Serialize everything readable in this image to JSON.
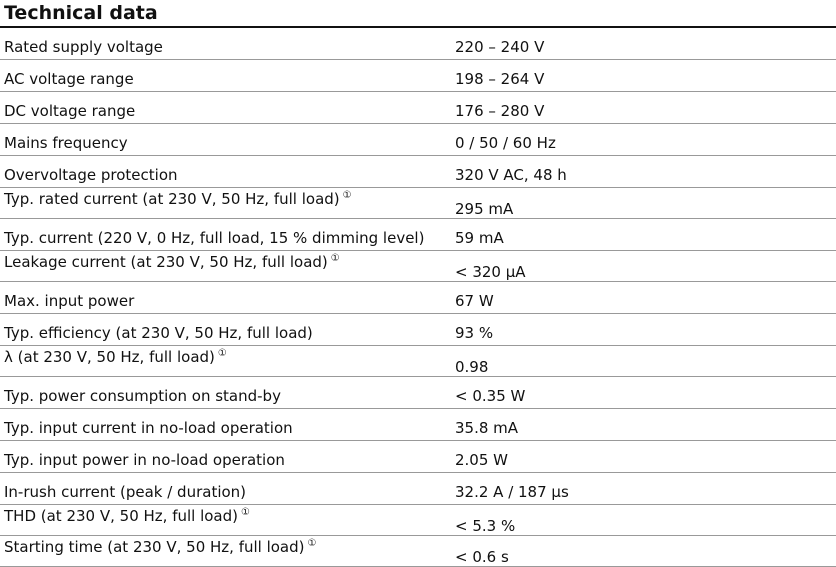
{
  "title": "Technical data",
  "table": {
    "rows": [
      {
        "label": "Rated supply voltage",
        "value": "220 – 240 V"
      },
      {
        "label": "AC voltage range",
        "value": "198 – 264 V"
      },
      {
        "label": "DC voltage range",
        "value": "176 – 280 V"
      },
      {
        "label": "Mains frequency",
        "value": "0 / 50 / 60 Hz"
      },
      {
        "label": "Overvoltage protection",
        "value": "320 V AC, 48 h"
      },
      {
        "label": "Typ. rated current (at 230 V, 50 Hz, full load)",
        "note": "①",
        "value": "295 mA"
      },
      {
        "label": "Typ. current (220 V, 0 Hz, full load, 15 % dimming level)",
        "value": "59 mA"
      },
      {
        "label": "Leakage current (at 230 V, 50 Hz, full load)",
        "note": "①",
        "value": "< 320 µA"
      },
      {
        "label": "Max. input power",
        "value": "67 W"
      },
      {
        "label": "Typ. efficiency (at 230 V, 50 Hz, full load)",
        "value": "93 %"
      },
      {
        "label": "λ (at 230 V, 50 Hz, full load)",
        "note": "①",
        "value": "0.98"
      },
      {
        "label": "Typ. power consumption on stand-by",
        "value": "< 0.35 W"
      },
      {
        "label": "Typ. input current in no-load operation",
        "value": "35.8 mA"
      },
      {
        "label": "Typ. input power in no-load operation",
        "value": "2.05 W"
      },
      {
        "label": "In-rush current (peak / duration)",
        "value": "32.2 A / 187 µs"
      },
      {
        "label": "THD (at 230 V, 50 Hz, full load)",
        "note": "①",
        "value": "< 5.3 %"
      },
      {
        "label": "Starting time (at 230 V, 50 Hz, full load)",
        "note": "①",
        "value": "< 0.6 s"
      }
    ]
  }
}
